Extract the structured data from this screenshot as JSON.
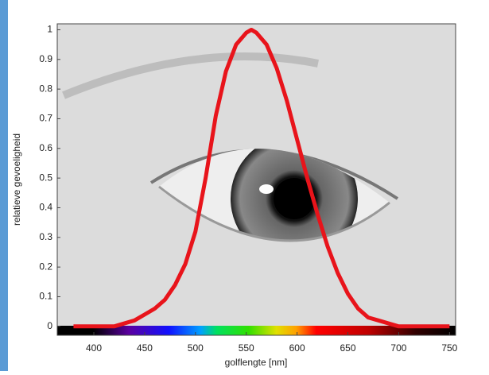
{
  "chart_data": {
    "type": "line",
    "xlabel": "golflengte [nm]",
    "ylabel": "relatieve gevoeligheid",
    "x": [
      380,
      390,
      400,
      410,
      420,
      430,
      440,
      450,
      460,
      470,
      480,
      490,
      500,
      510,
      520,
      530,
      540,
      550,
      555,
      560,
      570,
      580,
      590,
      600,
      610,
      620,
      630,
      640,
      650,
      660,
      670,
      680,
      690,
      700,
      710,
      720,
      730,
      740,
      750
    ],
    "series": [
      {
        "color": "#e8141b",
        "values": [
          0,
          0,
          0,
          0,
          0,
          0.01,
          0.02,
          0.04,
          0.06,
          0.09,
          0.14,
          0.21,
          0.32,
          0.5,
          0.71,
          0.86,
          0.95,
          0.99,
          1.0,
          0.99,
          0.95,
          0.87,
          0.76,
          0.63,
          0.5,
          0.38,
          0.27,
          0.18,
          0.11,
          0.06,
          0.03,
          0.02,
          0.01,
          0,
          0,
          0,
          0,
          0,
          0
        ]
      }
    ],
    "xlim": [
      364,
      756
    ],
    "ylim": [
      -0.03,
      1.02
    ],
    "xticks": [
      400,
      450,
      500,
      550,
      600,
      650,
      700,
      750
    ],
    "yticks": [
      0,
      0.1,
      0.2,
      0.3,
      0.4,
      0.5,
      0.6,
      0.7,
      0.8,
      0.9,
      1
    ]
  }
}
